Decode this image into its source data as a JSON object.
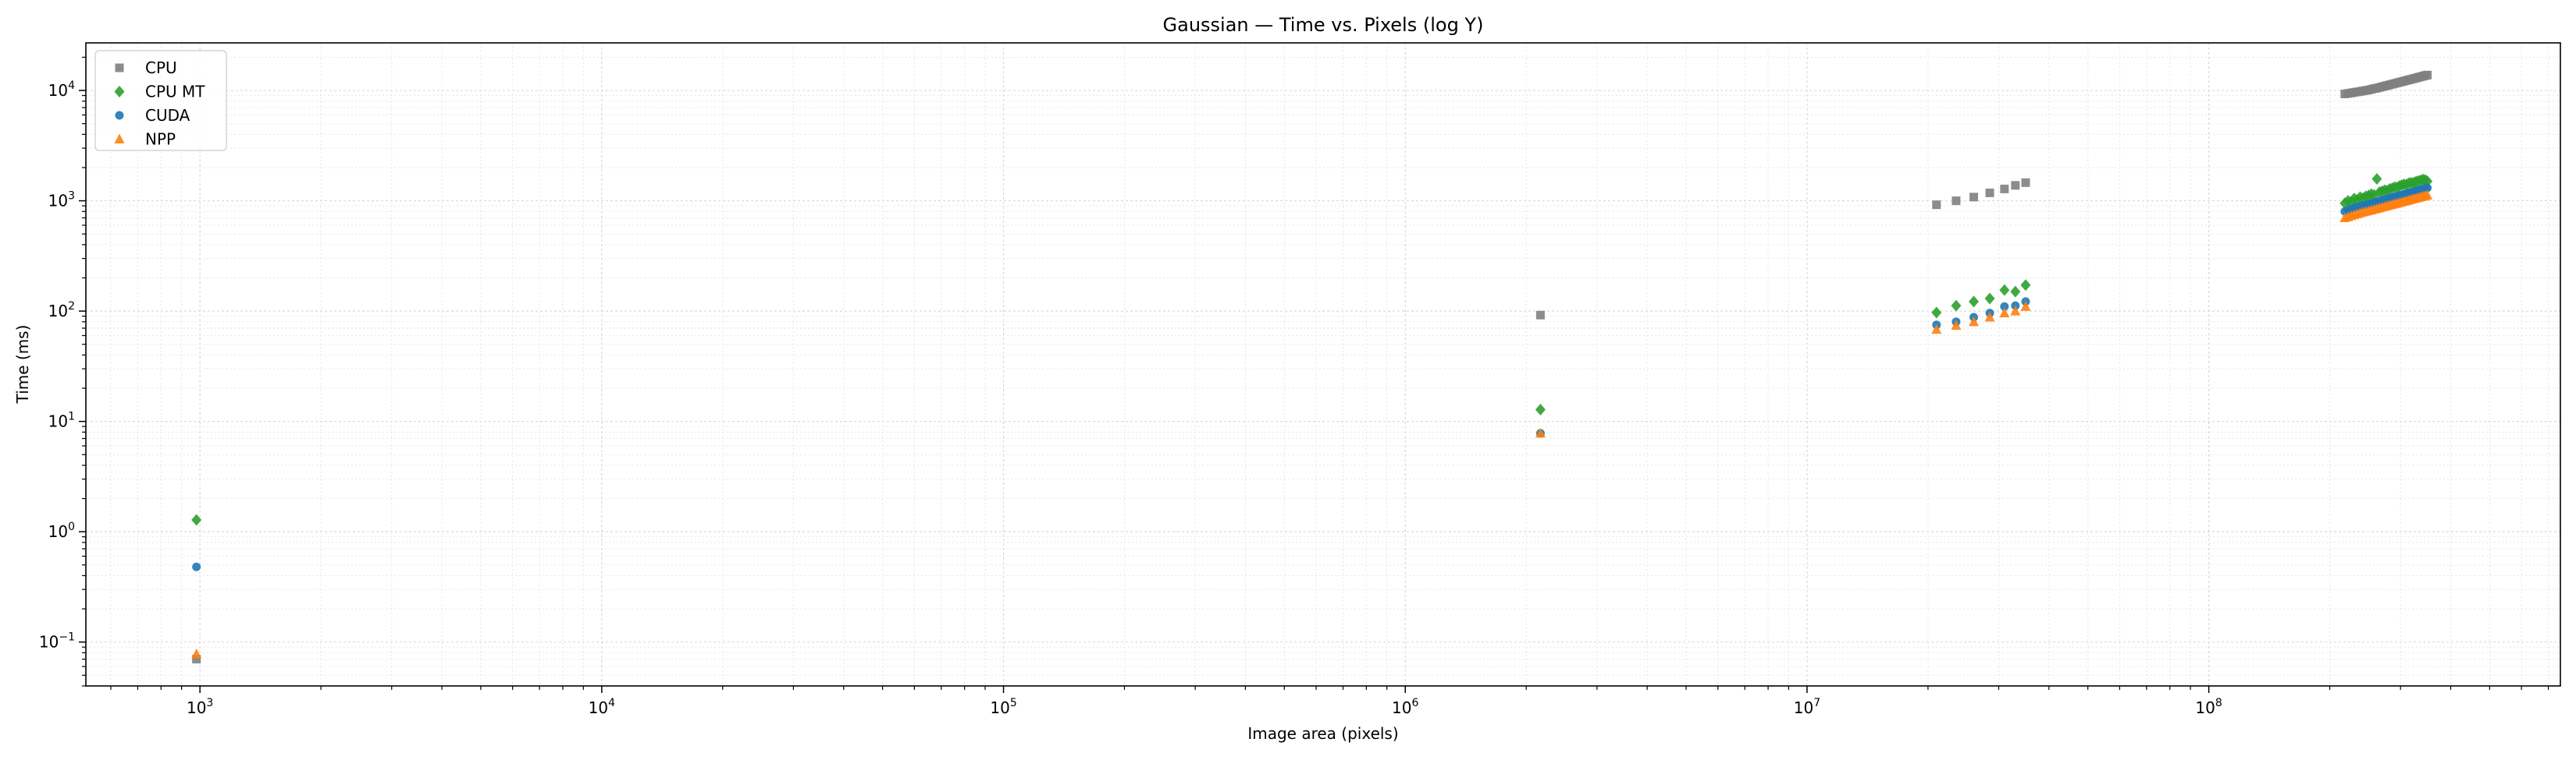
{
  "chart_data": {
    "type": "scatter",
    "title": "Gaussian — Time vs. Pixels (log Y)",
    "xlabel": "Image area (pixels)",
    "ylabel": "Time (ms)",
    "xscale": "log",
    "yscale": "log",
    "xlim": [
      520,
      750000000
    ],
    "ylim": [
      0.04,
      27000
    ],
    "x_ticks": [
      {
        "value": 1000,
        "base": "10",
        "exp": "3"
      },
      {
        "value": 10000,
        "base": "10",
        "exp": "4"
      },
      {
        "value": 100000,
        "base": "10",
        "exp": "5"
      },
      {
        "value": 1000000,
        "base": "10",
        "exp": "6"
      },
      {
        "value": 10000000,
        "base": "10",
        "exp": "7"
      },
      {
        "value": 100000000,
        "base": "10",
        "exp": "8"
      }
    ],
    "y_ticks": [
      {
        "value": 0.1,
        "base": "10",
        "exp": "−1"
      },
      {
        "value": 1,
        "base": "10",
        "exp": "0"
      },
      {
        "value": 10,
        "base": "10",
        "exp": "1"
      },
      {
        "value": 100,
        "base": "10",
        "exp": "2"
      },
      {
        "value": 1000,
        "base": "10",
        "exp": "3"
      },
      {
        "value": 10000,
        "base": "10",
        "exp": "4"
      }
    ],
    "grid": true,
    "legend_position": "top-left",
    "series": [
      {
        "name": "CPU",
        "marker": "square",
        "color": "#7f7f7f",
        "points": [
          [
            980,
            0.07
          ],
          [
            2170000,
            92
          ],
          [
            21000000,
            920
          ],
          [
            23500000,
            1000
          ],
          [
            26000000,
            1080
          ],
          [
            28500000,
            1180
          ],
          [
            31000000,
            1280
          ],
          [
            33000000,
            1380
          ],
          [
            35000000,
            1460
          ],
          [
            218000000,
            9300
          ],
          [
            222000000,
            9400
          ],
          [
            226000000,
            9500
          ],
          [
            230000000,
            9600
          ],
          [
            234000000,
            9700
          ],
          [
            238000000,
            9800
          ],
          [
            242000000,
            9900
          ],
          [
            246000000,
            10000
          ],
          [
            250000000,
            10100
          ],
          [
            254000000,
            10250
          ],
          [
            258000000,
            10400
          ],
          [
            262000000,
            10500
          ],
          [
            266000000,
            10650
          ],
          [
            270000000,
            10800
          ],
          [
            274000000,
            10950
          ],
          [
            278000000,
            11100
          ],
          [
            282000000,
            11250
          ],
          [
            286000000,
            11400
          ],
          [
            290000000,
            11550
          ],
          [
            294000000,
            11700
          ],
          [
            298000000,
            11850
          ],
          [
            302000000,
            12000
          ],
          [
            306000000,
            12150
          ],
          [
            310000000,
            12300
          ],
          [
            314000000,
            12450
          ],
          [
            318000000,
            12600
          ],
          [
            322000000,
            12750
          ],
          [
            326000000,
            12900
          ],
          [
            330000000,
            13050
          ],
          [
            334000000,
            13200
          ],
          [
            338000000,
            13350
          ],
          [
            342000000,
            13500
          ],
          [
            346000000,
            13650
          ],
          [
            350000000,
            13800
          ]
        ]
      },
      {
        "name": "CPU MT",
        "marker": "diamond",
        "color": "#2ca02c",
        "points": [
          [
            980,
            1.28
          ],
          [
            2170000,
            12.8
          ],
          [
            21000000,
            97
          ],
          [
            23500000,
            112
          ],
          [
            26000000,
            122
          ],
          [
            28500000,
            130
          ],
          [
            31000000,
            155
          ],
          [
            33000000,
            150
          ],
          [
            35000000,
            172
          ],
          [
            218000000,
            950
          ],
          [
            222000000,
            1000
          ],
          [
            226000000,
            980
          ],
          [
            230000000,
            1050
          ],
          [
            234000000,
            1020
          ],
          [
            238000000,
            1080
          ],
          [
            242000000,
            1060
          ],
          [
            246000000,
            1100
          ],
          [
            250000000,
            1120
          ],
          [
            254000000,
            1150
          ],
          [
            258000000,
            1130
          ],
          [
            262000000,
            1580
          ],
          [
            266000000,
            1200
          ],
          [
            270000000,
            1220
          ],
          [
            274000000,
            1250
          ],
          [
            278000000,
            1240
          ],
          [
            282000000,
            1280
          ],
          [
            286000000,
            1300
          ],
          [
            290000000,
            1330
          ],
          [
            294000000,
            1320
          ],
          [
            298000000,
            1360
          ],
          [
            302000000,
            1390
          ],
          [
            306000000,
            1410
          ],
          [
            310000000,
            1400
          ],
          [
            314000000,
            1440
          ],
          [
            318000000,
            1460
          ],
          [
            322000000,
            1450
          ],
          [
            326000000,
            1480
          ],
          [
            330000000,
            1500
          ],
          [
            334000000,
            1520
          ],
          [
            338000000,
            1540
          ],
          [
            342000000,
            1560
          ],
          [
            346000000,
            1540
          ],
          [
            350000000,
            1500
          ]
        ]
      },
      {
        "name": "CUDA",
        "marker": "circle",
        "color": "#1f77b4",
        "points": [
          [
            980,
            0.48
          ],
          [
            2170000,
            7.8
          ],
          [
            21000000,
            75
          ],
          [
            23500000,
            80
          ],
          [
            26000000,
            88
          ],
          [
            28500000,
            96
          ],
          [
            31000000,
            110
          ],
          [
            33000000,
            112
          ],
          [
            35000000,
            122
          ],
          [
            218000000,
            800
          ],
          [
            222000000,
            820
          ],
          [
            226000000,
            840
          ],
          [
            230000000,
            860
          ],
          [
            234000000,
            875
          ],
          [
            238000000,
            890
          ],
          [
            242000000,
            905
          ],
          [
            246000000,
            920
          ],
          [
            250000000,
            935
          ],
          [
            254000000,
            950
          ],
          [
            258000000,
            965
          ],
          [
            262000000,
            980
          ],
          [
            266000000,
            995
          ],
          [
            270000000,
            1010
          ],
          [
            274000000,
            1025
          ],
          [
            278000000,
            1040
          ],
          [
            282000000,
            1055
          ],
          [
            286000000,
            1070
          ],
          [
            290000000,
            1085
          ],
          [
            294000000,
            1100
          ],
          [
            298000000,
            1115
          ],
          [
            302000000,
            1130
          ],
          [
            306000000,
            1145
          ],
          [
            310000000,
            1160
          ],
          [
            314000000,
            1175
          ],
          [
            318000000,
            1190
          ],
          [
            322000000,
            1205
          ],
          [
            326000000,
            1220
          ],
          [
            330000000,
            1235
          ],
          [
            334000000,
            1250
          ],
          [
            338000000,
            1265
          ],
          [
            342000000,
            1280
          ],
          [
            346000000,
            1295
          ],
          [
            350000000,
            1310
          ]
        ]
      },
      {
        "name": "NPP",
        "marker": "triangle",
        "color": "#ff7f0e",
        "points": [
          [
            980,
            0.078
          ],
          [
            2170000,
            7.8
          ],
          [
            21000000,
            68
          ],
          [
            23500000,
            74
          ],
          [
            26000000,
            80
          ],
          [
            28500000,
            88
          ],
          [
            31000000,
            96
          ],
          [
            33000000,
            100
          ],
          [
            35000000,
            110
          ],
          [
            218000000,
            700
          ],
          [
            222000000,
            715
          ],
          [
            226000000,
            730
          ],
          [
            230000000,
            745
          ],
          [
            234000000,
            760
          ],
          [
            238000000,
            775
          ],
          [
            242000000,
            790
          ],
          [
            246000000,
            800
          ],
          [
            250000000,
            812
          ],
          [
            254000000,
            825
          ],
          [
            258000000,
            838
          ],
          [
            262000000,
            850
          ],
          [
            266000000,
            862
          ],
          [
            270000000,
            875
          ],
          [
            274000000,
            888
          ],
          [
            278000000,
            900
          ],
          [
            282000000,
            912
          ],
          [
            286000000,
            925
          ],
          [
            290000000,
            938
          ],
          [
            294000000,
            950
          ],
          [
            298000000,
            962
          ],
          [
            302000000,
            975
          ],
          [
            306000000,
            988
          ],
          [
            310000000,
            1000
          ],
          [
            314000000,
            1012
          ],
          [
            318000000,
            1025
          ],
          [
            322000000,
            1038
          ],
          [
            326000000,
            1050
          ],
          [
            330000000,
            1062
          ],
          [
            334000000,
            1075
          ],
          [
            338000000,
            1088
          ],
          [
            342000000,
            1100
          ],
          [
            346000000,
            1112
          ],
          [
            350000000,
            1125
          ]
        ]
      }
    ]
  }
}
